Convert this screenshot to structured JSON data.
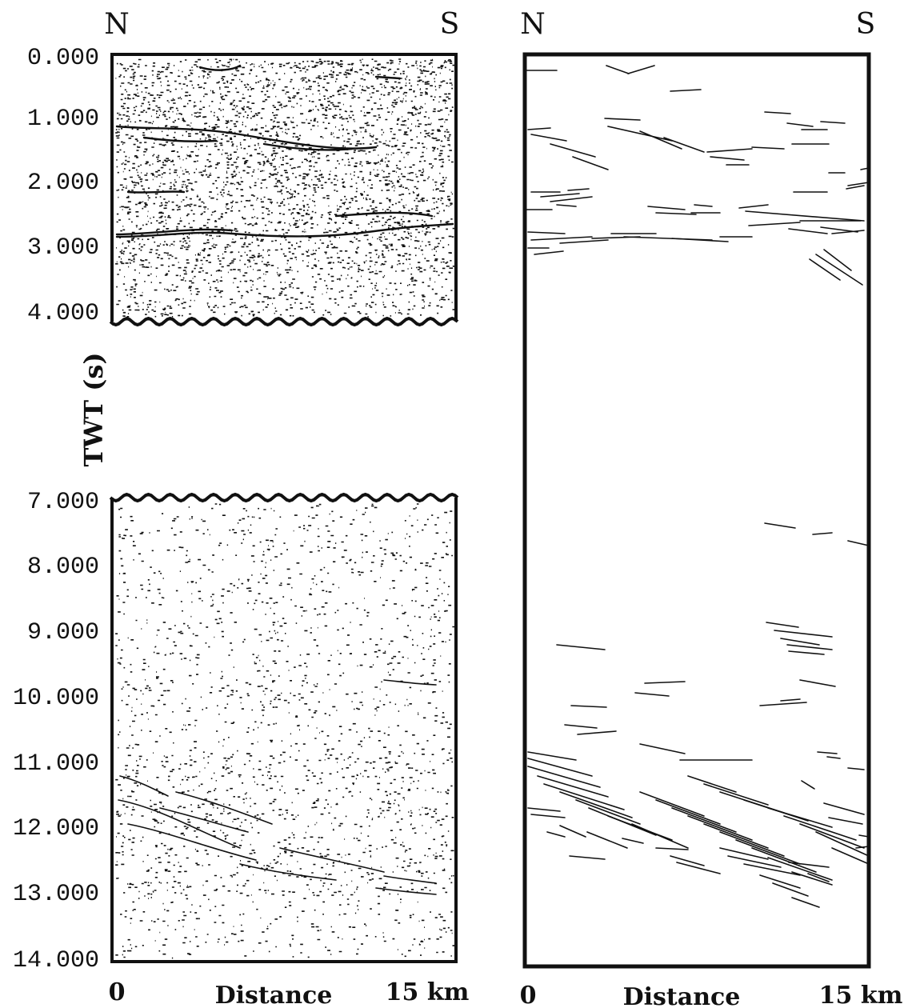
{
  "left_panel": {
    "north_label": "N",
    "south_label": "S",
    "y_axis_label": "TWT (s)",
    "upper_window": {
      "start_s": 0,
      "end_s": 4
    },
    "lower_window": {
      "start_s": 7,
      "end_s": 14
    },
    "tick_labels": [
      "0.000",
      "1.000",
      "2.000",
      "3.000",
      "4.000",
      "7.000",
      "8.000",
      "9.000",
      "10.000",
      "11.000",
      "12.000",
      "13.000",
      "14.000"
    ],
    "x_start_label": "0",
    "x_title": "Distance",
    "x_end_label": "15 km"
  },
  "right_panel": {
    "north_label": "N",
    "south_label": "S",
    "x_start_label": "0",
    "x_title": "Distance",
    "x_end_label": "15 km"
  },
  "colors": {
    "ink": "#111111",
    "background": "#ffffff"
  }
}
